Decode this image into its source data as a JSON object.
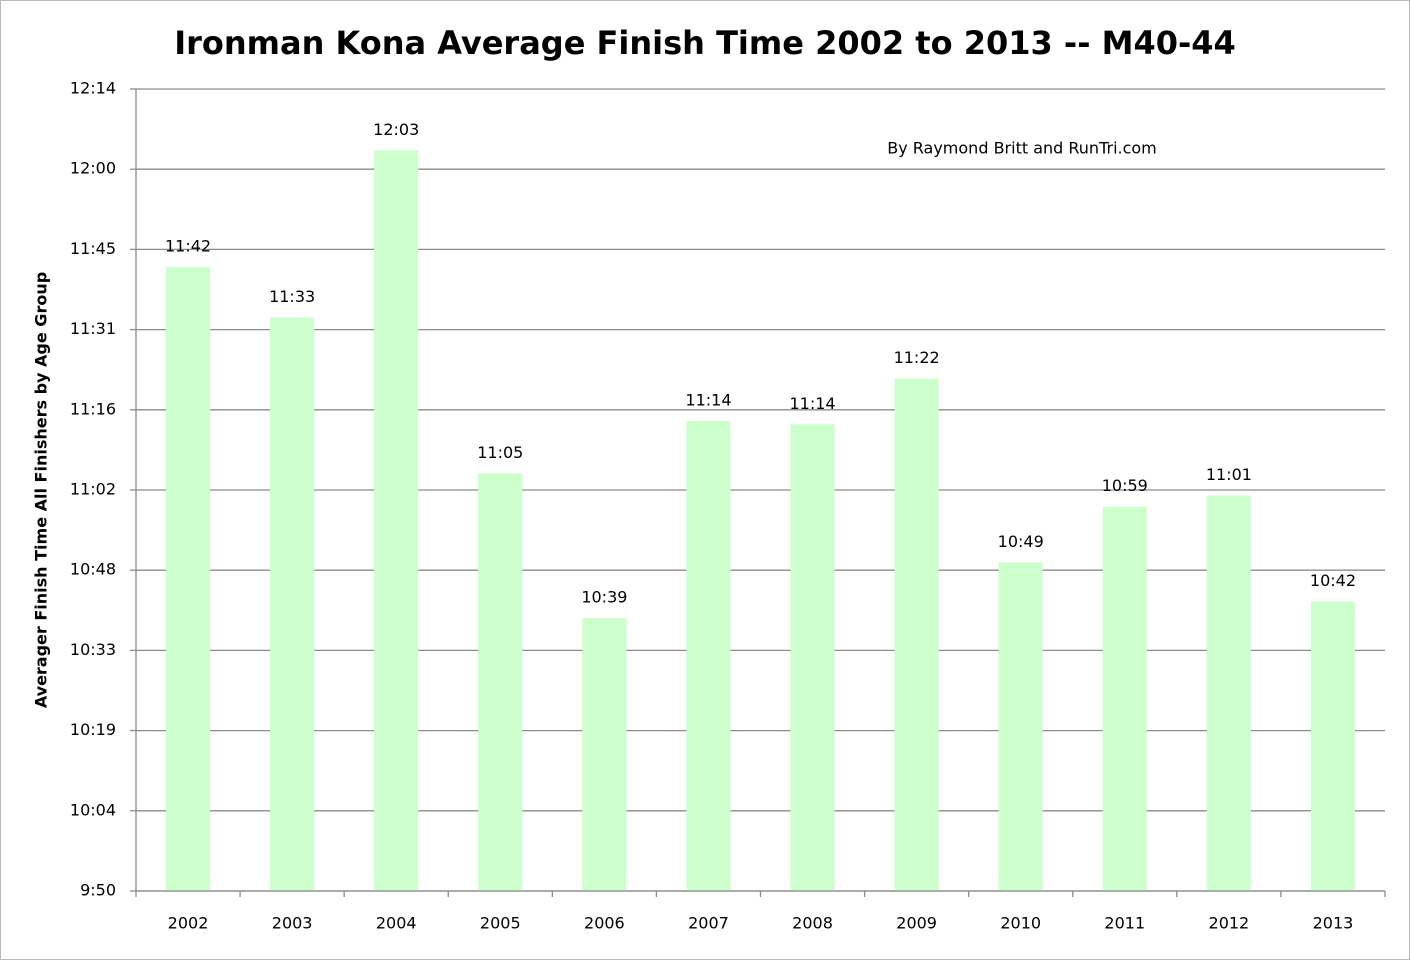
{
  "chart_data": {
    "type": "bar",
    "title": "Ironman Kona Average Finish Time 2002 to 2013 -- M40-44",
    "annotation": "By Raymond Britt and RunTri.com",
    "y_label": "Averager Finish Time All Finishers by Age Group",
    "categories": [
      "2002",
      "2003",
      "2004",
      "2005",
      "2006",
      "2007",
      "2008",
      "2009",
      "2010",
      "2011",
      "2012",
      "2013"
    ],
    "values": [
      702,
      693,
      723,
      665,
      639,
      674.4,
      673.8,
      682,
      649,
      659,
      661,
      642
    ],
    "value_labels": [
      "11:42",
      "11:33",
      "12:03",
      "11:05",
      "10:39",
      "11:14",
      "11:14",
      "11:22",
      "10:49",
      "10:59",
      "11:01",
      "10:42"
    ],
    "color": "#ccffcc",
    "ylim": [
      590,
      734
    ],
    "yticks": [
      {
        "value": 590,
        "label": "9:50"
      },
      {
        "value": 604.4,
        "label": "10:04"
      },
      {
        "value": 618.8,
        "label": "10:19"
      },
      {
        "value": 633.2,
        "label": "10:33"
      },
      {
        "value": 647.6,
        "label": "10:48"
      },
      {
        "value": 662,
        "label": "11:02"
      },
      {
        "value": 676.4,
        "label": "11:16"
      },
      {
        "value": 690.8,
        "label": "11:31"
      },
      {
        "value": 705.2,
        "label": "11:45"
      },
      {
        "value": 719.6,
        "label": "12:00"
      },
      {
        "value": 734,
        "label": "12:14"
      }
    ],
    "grid": true
  }
}
